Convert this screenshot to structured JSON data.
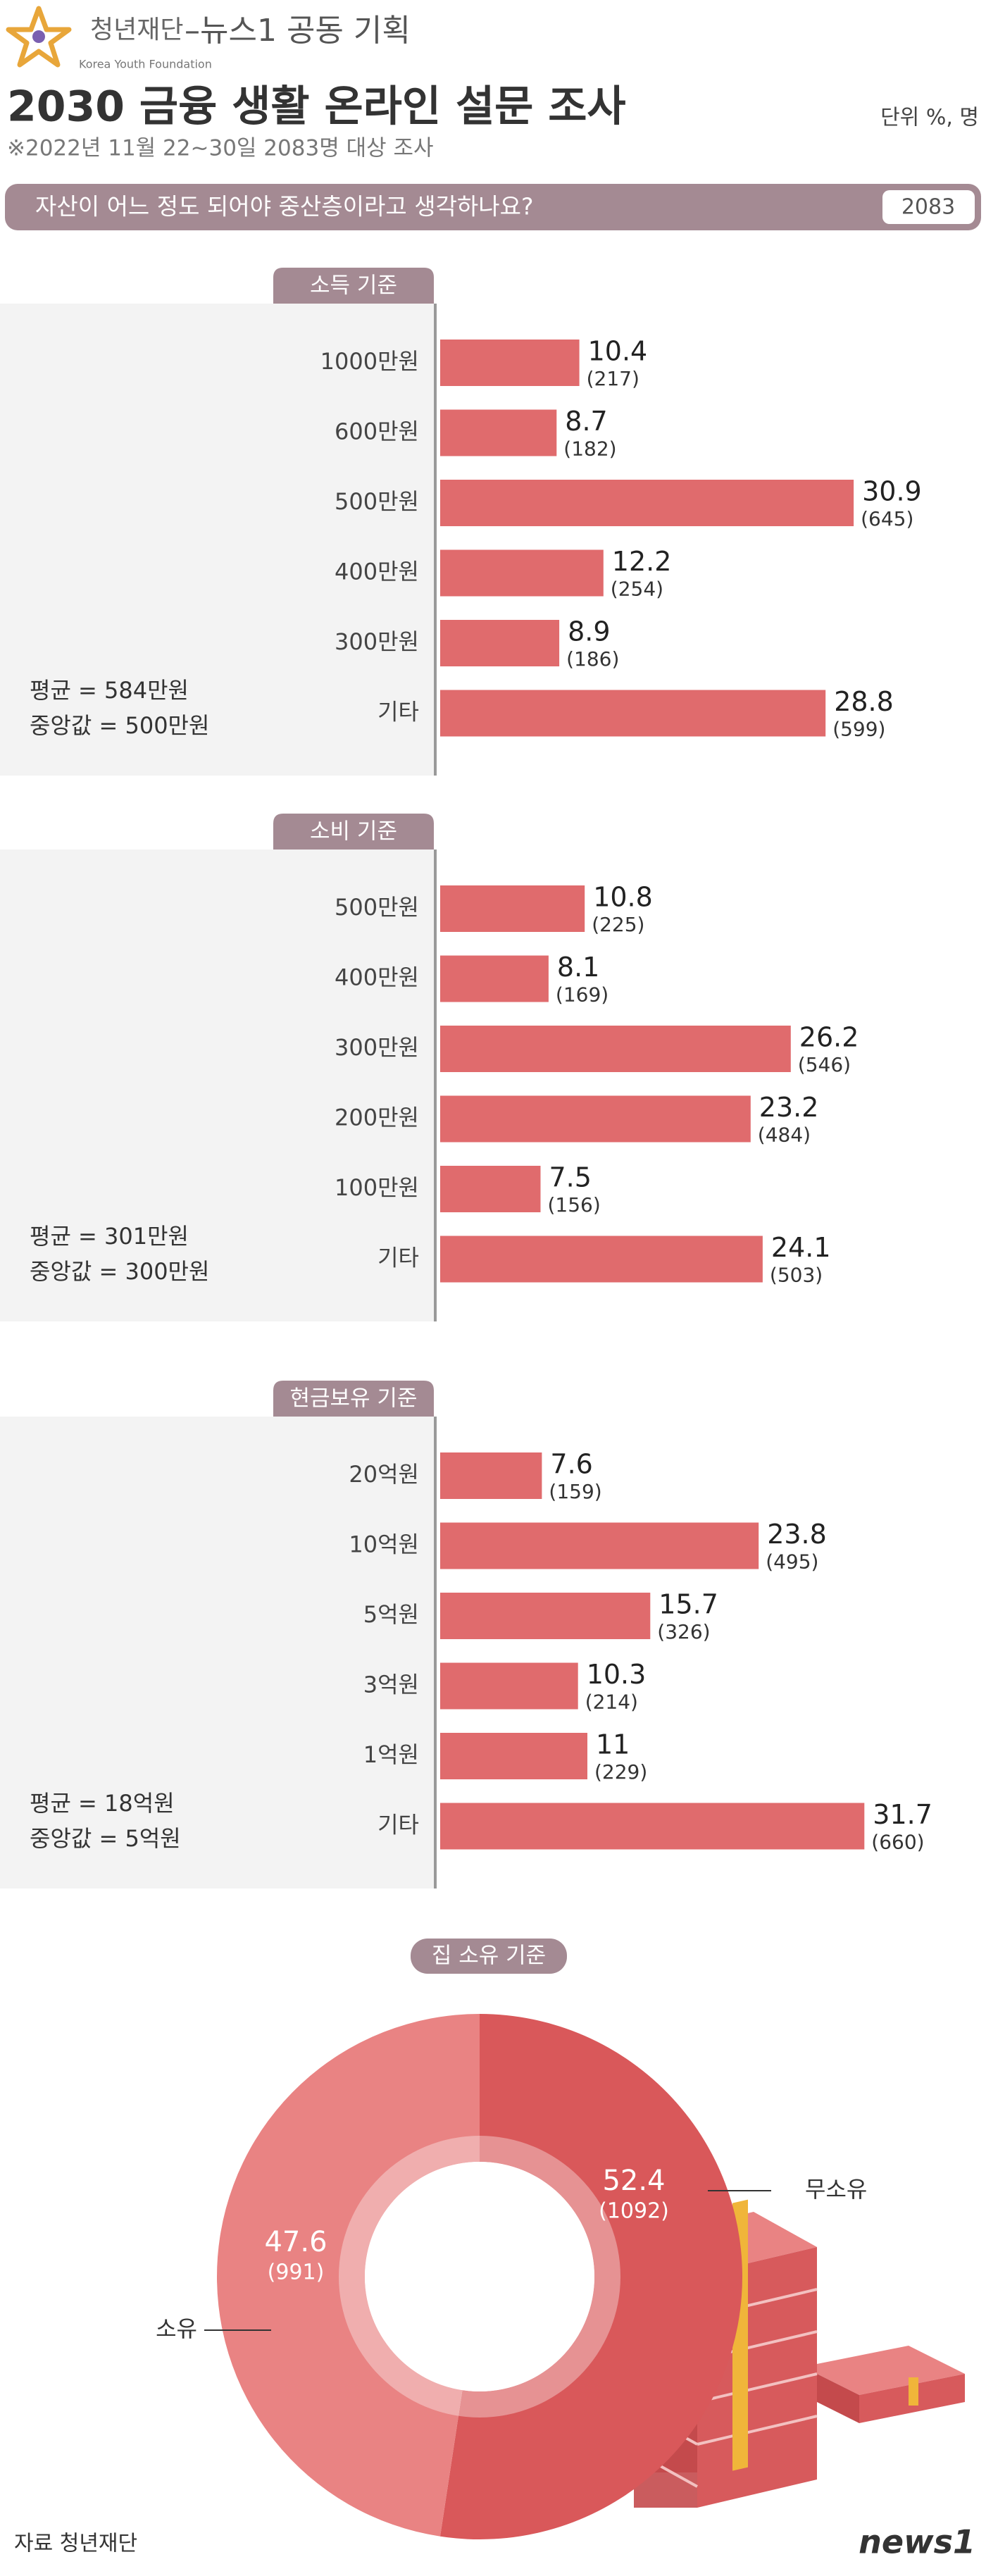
{
  "header": {
    "org": "청년재단",
    "org_en": "Korea Youth Foundation",
    "partner": "–뉴스1 공동 기획",
    "title": "2030 금융 생활  온라인 설문 조사",
    "subtitle": "※2022년 11월 22~30일 2083명 대상 조사",
    "unit": "단위 %, 명",
    "question": "자산이 어느 정도 되어야 중산층이라고 생각하나요?",
    "respondents": "2083"
  },
  "chart_data": [
    {
      "type": "bar",
      "orientation": "horizontal",
      "title": "소득 기준",
      "color": "#e06b6d",
      "categories": [
        "1000만원",
        "600만원",
        "500만원",
        "400만원",
        "300만원",
        "기타"
      ],
      "values": [
        10.4,
        8.7,
        30.9,
        12.2,
        8.9,
        28.8
      ],
      "count_labels": [
        "(217)",
        "(182)",
        "(645)",
        "(254)",
        "(186)",
        "(599)"
      ],
      "notes": [
        "평균 = 584만원",
        "중앙값 = 500만원"
      ]
    },
    {
      "type": "bar",
      "orientation": "horizontal",
      "title": "소비 기준",
      "color": "#e06b6d",
      "categories": [
        "500만원",
        "400만원",
        "300만원",
        "200만원",
        "100만원",
        "기타"
      ],
      "values": [
        10.8,
        8.1,
        26.2,
        23.2,
        7.5,
        24.1
      ],
      "count_labels": [
        "(225)",
        "(169)",
        "(546)",
        "(484)",
        "(156)",
        "(503)"
      ],
      "notes": [
        "평균 = 301만원",
        "중앙값 = 300만원"
      ]
    },
    {
      "type": "bar",
      "orientation": "horizontal",
      "title": "현금보유 기준",
      "color": "#e06b6d",
      "categories": [
        "20억원",
        "10억원",
        "5억원",
        "3억원",
        "1억원",
        "기타"
      ],
      "values": [
        7.6,
        23.8,
        15.7,
        10.3,
        11,
        31.7
      ],
      "count_labels": [
        "(159)",
        "(495)",
        "(326)",
        "(214)",
        "(229)",
        "(660)"
      ],
      "notes": [
        "평균 = 18억원",
        "중앙값 = 5억원"
      ]
    },
    {
      "type": "pie",
      "donut": true,
      "title": "집 소유 기준",
      "categories": [
        "무소유",
        "소유"
      ],
      "values": [
        52.4,
        47.6
      ],
      "count_labels": [
        "(1092)",
        "(991)"
      ],
      "colors": [
        "#d9585a",
        "#e98383"
      ]
    }
  ],
  "footer": {
    "source": "자료 청년재단",
    "brand": "news1"
  }
}
